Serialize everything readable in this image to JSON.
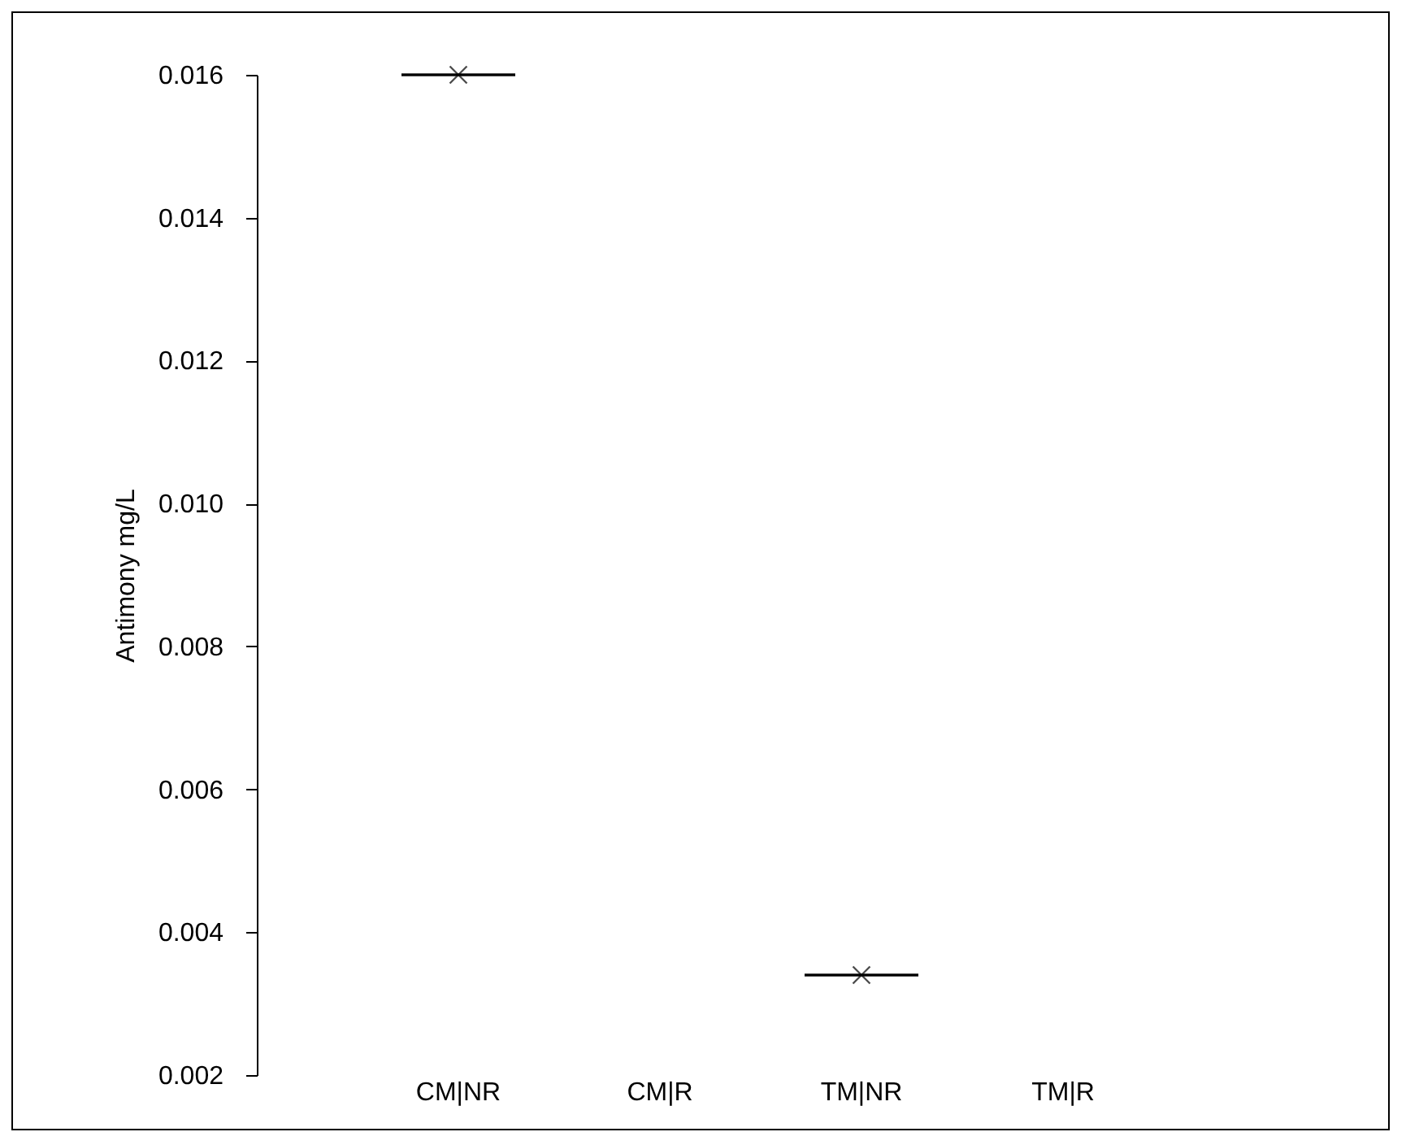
{
  "chart_data": {
    "type": "box",
    "ylabel": "Antimony mg/L",
    "categories": [
      "CM|NR",
      "CM|R",
      "TM|NR",
      "TM|R"
    ],
    "boxes": [
      {
        "low": 0.016,
        "q1": 0.016,
        "median": 0.016,
        "q3": 0.016,
        "high": 0.016,
        "mean": 0.016
      },
      null,
      {
        "low": 0.0034,
        "q1": 0.0034,
        "median": 0.0034,
        "q3": 0.0034,
        "high": 0.0034,
        "mean": 0.0034
      },
      null
    ],
    "color": "#000000",
    "ylim": [
      0.002,
      0.016
    ],
    "yticks": [
      0.002,
      0.004,
      0.006,
      0.008,
      {
        "value": 0.01,
        "label": "0.010"
      },
      0.012,
      0.014,
      0.016
    ],
    "grid": false,
    "marker": "cross"
  }
}
